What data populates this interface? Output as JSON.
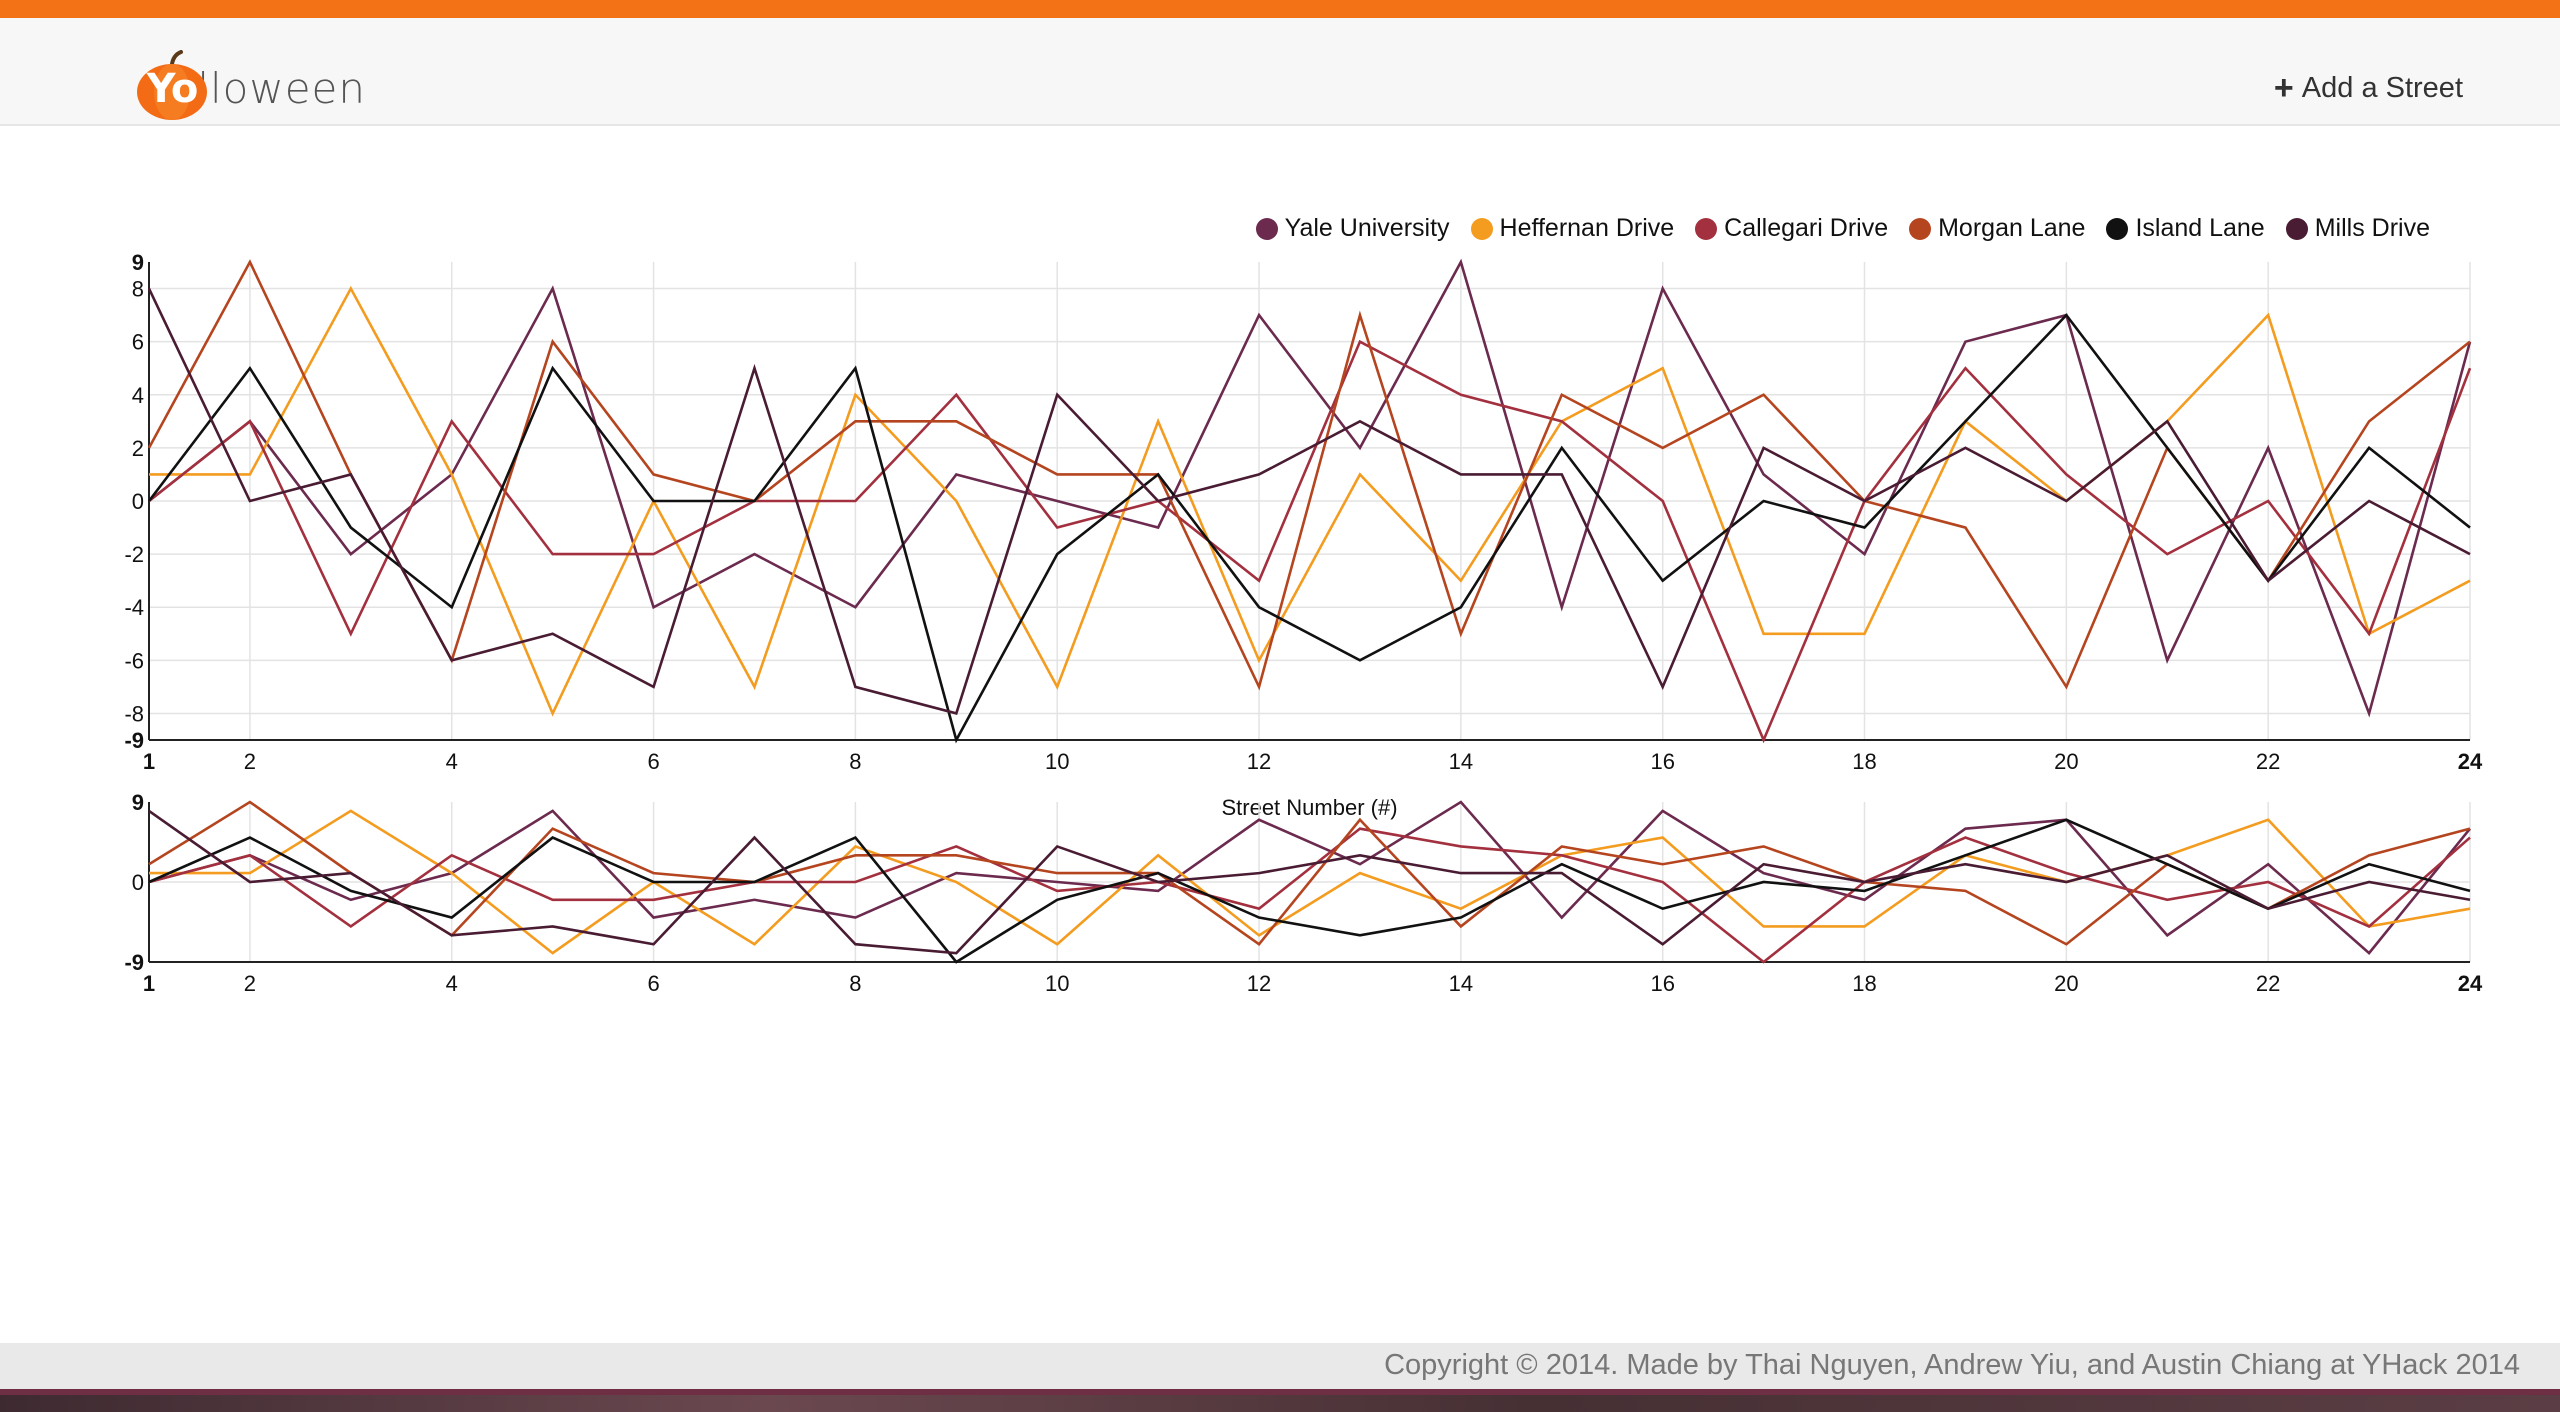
{
  "header": {
    "logo_highlight": "Yo",
    "logo_rest": "lloween",
    "add_label": "Add a Street"
  },
  "footer": {
    "copyright": "Copyright © 2014. Made by Thai Nguyen, Andrew Yiu, and Austin Chiang at YHack 2014"
  },
  "chart_data": [
    {
      "type": "line",
      "x": [
        1,
        2,
        3,
        4,
        5,
        6,
        7,
        8,
        9,
        10,
        11,
        12,
        13,
        14,
        15,
        16,
        17,
        18,
        19,
        20,
        21,
        22,
        23,
        24
      ],
      "xlabel": "Street Number (#)",
      "ylabel": "",
      "xlim": [
        1,
        24
      ],
      "ylim": [
        -9,
        9
      ],
      "x_ticks": [
        1,
        2,
        4,
        6,
        8,
        10,
        12,
        14,
        16,
        18,
        20,
        22,
        24
      ],
      "y_ticks": [
        9,
        8,
        6,
        4,
        2,
        0,
        -2,
        -4,
        -6,
        -8,
        -9
      ],
      "grid": true,
      "legend": "top-right",
      "series": [
        {
          "name": "Yale University",
          "color": "#6b2a4e",
          "values": [
            0,
            3,
            -2,
            1,
            8,
            -4,
            -2,
            -4,
            1,
            0,
            -1,
            7,
            2,
            9,
            -4,
            8,
            1,
            -2,
            6,
            7,
            -6,
            2,
            -8,
            6
          ]
        },
        {
          "name": "Heffernan Drive",
          "color": "#f39c1f",
          "values": [
            1,
            1,
            8,
            1,
            -8,
            0,
            -7,
            4,
            0,
            -7,
            3,
            -6,
            1,
            -3,
            3,
            5,
            -5,
            -5,
            3,
            0,
            3,
            7,
            -5,
            -3
          ]
        },
        {
          "name": "Callegari Drive",
          "color": "#a3303f",
          "values": [
            0,
            3,
            -5,
            3,
            -2,
            -2,
            0,
            0,
            4,
            -1,
            0,
            -3,
            6,
            4,
            3,
            0,
            -9,
            0,
            5,
            1,
            -2,
            0,
            -5,
            5
          ]
        },
        {
          "name": "Morgan Lane",
          "color": "#b5451f",
          "values": [
            2,
            9,
            1,
            -6,
            6,
            1,
            0,
            3,
            3,
            1,
            1,
            -7,
            7,
            -5,
            4,
            2,
            4,
            0,
            -1,
            -7,
            2,
            -3,
            3,
            6
          ]
        },
        {
          "name": "Island Lane",
          "color": "#111111",
          "values": [
            0,
            5,
            -1,
            -4,
            5,
            0,
            0,
            5,
            -9,
            -2,
            1,
            -4,
            -6,
            -4,
            2,
            -3,
            0,
            -1,
            3,
            7,
            2,
            -3,
            2,
            -1
          ]
        },
        {
          "name": "Mills Drive",
          "color": "#4a1c33",
          "values": [
            8,
            0,
            1,
            -6,
            -5,
            -7,
            5,
            -7,
            -8,
            4,
            0,
            1,
            3,
            1,
            1,
            -7,
            2,
            0,
            2,
            0,
            3,
            -3,
            0,
            -2
          ]
        }
      ]
    },
    {
      "type": "line",
      "x": [
        1,
        2,
        3,
        4,
        5,
        6,
        7,
        8,
        9,
        10,
        11,
        12,
        13,
        14,
        15,
        16,
        17,
        18,
        19,
        20,
        21,
        22,
        23,
        24
      ],
      "xlim": [
        1,
        24
      ],
      "ylim": [
        -9,
        9
      ],
      "x_ticks": [
        1,
        2,
        4,
        6,
        8,
        10,
        12,
        14,
        16,
        18,
        20,
        22,
        24
      ],
      "y_ticks": [
        9,
        0,
        -9
      ],
      "grid": true,
      "series_ref": "same as chart 1"
    }
  ]
}
